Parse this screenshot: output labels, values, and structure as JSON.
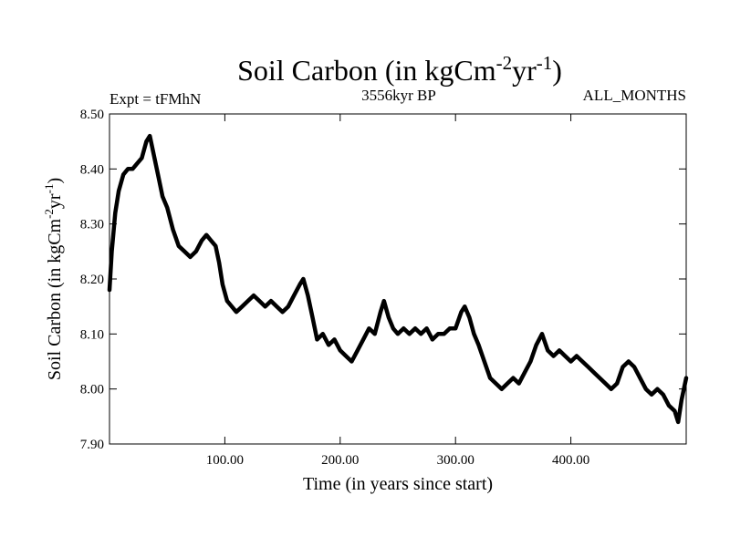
{
  "chart_data": {
    "type": "line",
    "title_main": "Soil Carbon (in kgCm",
    "title_exp1": "-2",
    "title_mid": "yr",
    "title_exp2": "-1",
    "title_end": ")",
    "subtitle_left": "Expt = tFMhN",
    "subtitle_center": "3556kyr BP",
    "subtitle_right": "ALL_MONTHS",
    "xlabel": "Time (in years since start)",
    "ylabel_main": "Soil Carbon (in kgCm",
    "ylabel_exp1": "-2",
    "ylabel_mid": "yr",
    "ylabel_exp2": "-1",
    "ylabel_end": ")",
    "xlim": [
      0,
      500
    ],
    "ylim": [
      7.9,
      8.5
    ],
    "xticks": [
      {
        "value": 100,
        "label": "100.00"
      },
      {
        "value": 200,
        "label": "200.00"
      },
      {
        "value": 300,
        "label": "300.00"
      },
      {
        "value": 400,
        "label": "400.00"
      }
    ],
    "yticks": [
      {
        "value": 7.9,
        "label": "7.90"
      },
      {
        "value": 8.0,
        "label": "8.00"
      },
      {
        "value": 8.1,
        "label": "8.10"
      },
      {
        "value": 8.2,
        "label": "8.20"
      },
      {
        "value": 8.3,
        "label": "8.30"
      },
      {
        "value": 8.4,
        "label": "8.40"
      },
      {
        "value": 8.5,
        "label": "8.50"
      }
    ],
    "series": [
      {
        "name": "Soil Carbon",
        "color": "#000000",
        "x": [
          0,
          2,
          5,
          8,
          12,
          16,
          20,
          24,
          28,
          32,
          35,
          38,
          42,
          46,
          50,
          55,
          60,
          65,
          70,
          75,
          80,
          84,
          88,
          92,
          95,
          98,
          102,
          106,
          110,
          115,
          120,
          125,
          130,
          135,
          140,
          145,
          150,
          155,
          160,
          165,
          168,
          172,
          176,
          180,
          185,
          190,
          195,
          200,
          205,
          210,
          215,
          220,
          225,
          230,
          235,
          238,
          242,
          246,
          250,
          255,
          260,
          265,
          270,
          275,
          280,
          285,
          290,
          295,
          300,
          305,
          308,
          312,
          316,
          320,
          325,
          330,
          335,
          340,
          345,
          350,
          355,
          360,
          365,
          370,
          375,
          380,
          385,
          390,
          395,
          400,
          405,
          410,
          415,
          420,
          425,
          430,
          435,
          440,
          445,
          450,
          455,
          460,
          465,
          470,
          475,
          480,
          485,
          490,
          493,
          496,
          500
        ],
        "y": [
          8.18,
          8.25,
          8.32,
          8.36,
          8.39,
          8.4,
          8.4,
          8.41,
          8.42,
          8.45,
          8.46,
          8.43,
          8.39,
          8.35,
          8.33,
          8.29,
          8.26,
          8.25,
          8.24,
          8.25,
          8.27,
          8.28,
          8.27,
          8.26,
          8.23,
          8.19,
          8.16,
          8.15,
          8.14,
          8.15,
          8.16,
          8.17,
          8.16,
          8.15,
          8.16,
          8.15,
          8.14,
          8.15,
          8.17,
          8.19,
          8.2,
          8.17,
          8.13,
          8.09,
          8.1,
          8.08,
          8.09,
          8.07,
          8.06,
          8.05,
          8.07,
          8.09,
          8.11,
          8.1,
          8.14,
          8.16,
          8.13,
          8.11,
          8.1,
          8.11,
          8.1,
          8.11,
          8.1,
          8.11,
          8.09,
          8.1,
          8.1,
          8.11,
          8.11,
          8.14,
          8.15,
          8.13,
          8.1,
          8.08,
          8.05,
          8.02,
          8.01,
          8.0,
          8.01,
          8.02,
          8.01,
          8.03,
          8.05,
          8.08,
          8.1,
          8.07,
          8.06,
          8.07,
          8.06,
          8.05,
          8.06,
          8.05,
          8.04,
          8.03,
          8.02,
          8.01,
          8.0,
          8.01,
          8.04,
          8.05,
          8.04,
          8.02,
          8.0,
          7.99,
          8.0,
          7.99,
          7.97,
          7.96,
          7.94,
          7.98,
          8.02
        ]
      }
    ]
  }
}
